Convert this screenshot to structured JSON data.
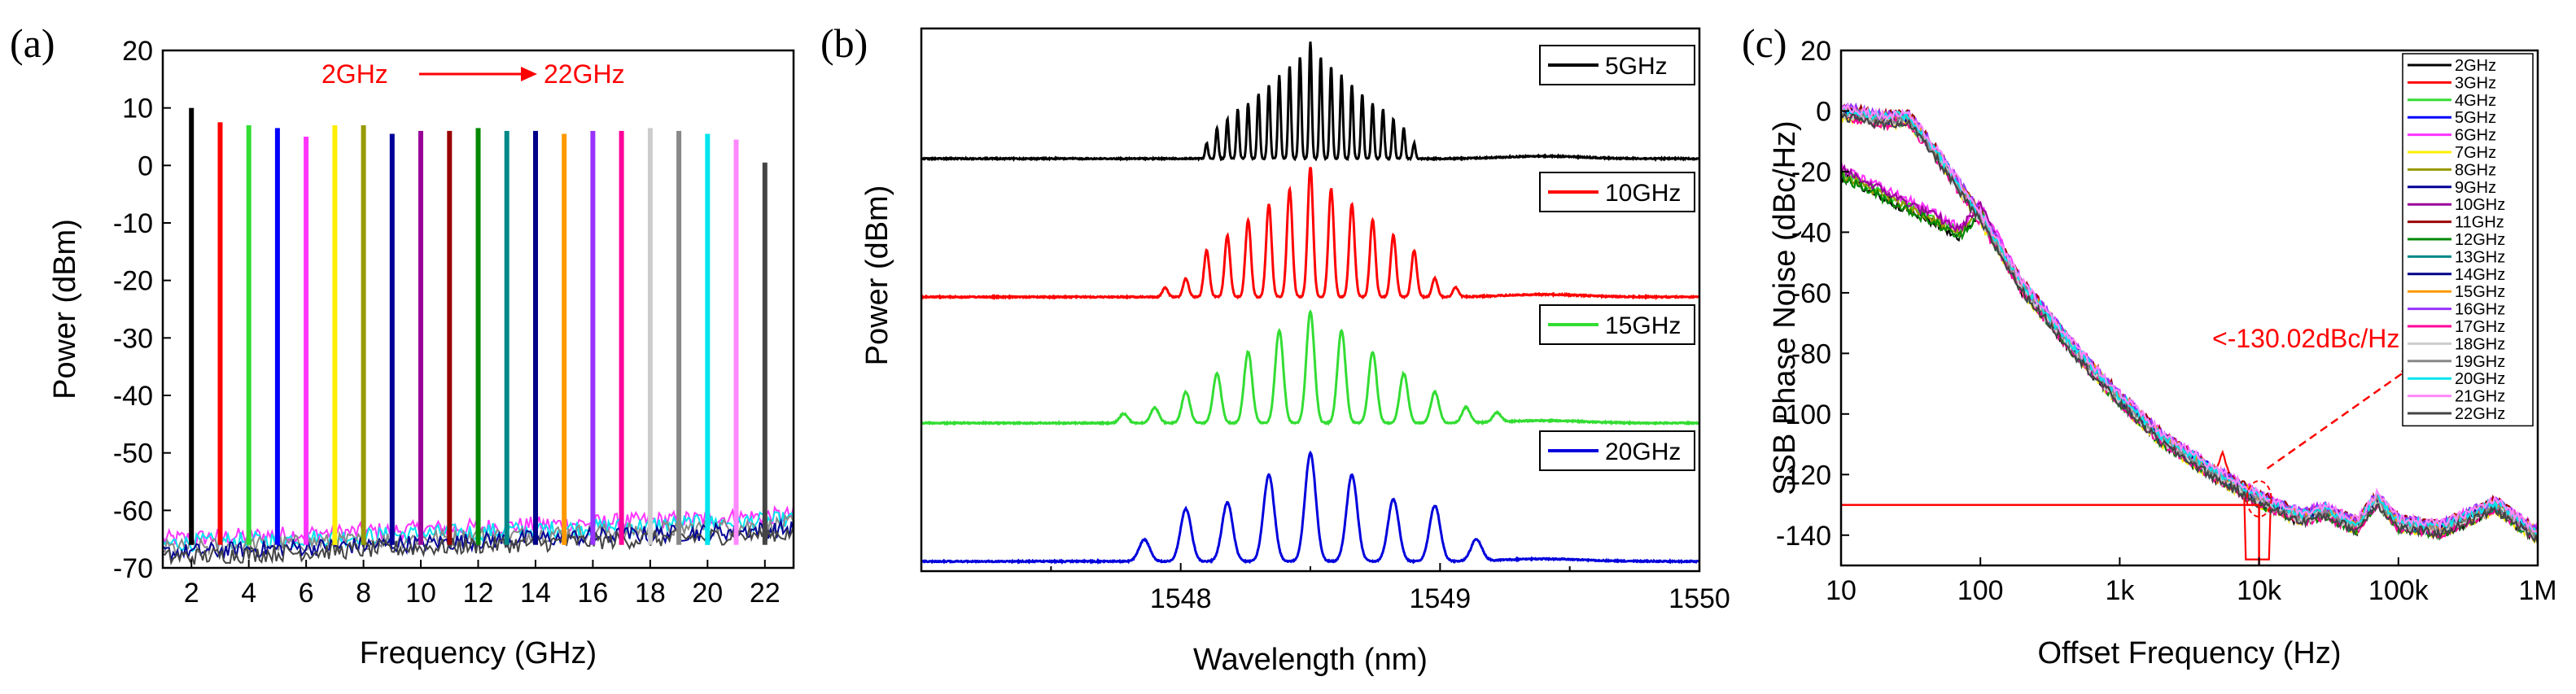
{
  "panels": [
    {
      "id": "a",
      "letter": "(a)"
    },
    {
      "id": "b",
      "letter": "(b)"
    },
    {
      "id": "c",
      "letter": "(c)"
    }
  ],
  "chart_data": [
    {
      "id": "a",
      "type": "line",
      "title": "",
      "xlabel": "Frequency (GHz)",
      "ylabel": "Power (dBm)",
      "xlim": [
        1,
        23
      ],
      "ylim": [
        -70,
        20
      ],
      "xticks": [
        2,
        4,
        6,
        8,
        10,
        12,
        14,
        16,
        18,
        20,
        22
      ],
      "yticks": [
        20,
        10,
        0,
        -10,
        -20,
        -30,
        -40,
        -50,
        -60,
        -70
      ],
      "annotation": {
        "from": "2GHz",
        "to": "22GHz",
        "color": "#ff0000"
      },
      "noise_floor": -64,
      "series": [
        {
          "name": "2GHz",
          "freq": 2,
          "peak": 10,
          "color": "#000000"
        },
        {
          "name": "3GHz",
          "freq": 3,
          "peak": 7.5,
          "color": "#ff0000"
        },
        {
          "name": "4GHz",
          "freq": 4,
          "peak": 7,
          "color": "#33dd33"
        },
        {
          "name": "5GHz",
          "freq": 5,
          "peak": 6.5,
          "color": "#0000ff"
        },
        {
          "name": "6GHz",
          "freq": 6,
          "peak": 5,
          "color": "#ff33ff"
        },
        {
          "name": "7GHz",
          "freq": 7,
          "peak": 7,
          "color": "#ffee00"
        },
        {
          "name": "8GHz",
          "freq": 8,
          "peak": 7,
          "color": "#999900"
        },
        {
          "name": "9GHz",
          "freq": 9,
          "peak": 5.5,
          "color": "#000099"
        },
        {
          "name": "10GHz",
          "freq": 10,
          "peak": 6,
          "color": "#990099"
        },
        {
          "name": "11GHz",
          "freq": 11,
          "peak": 6,
          "color": "#990000"
        },
        {
          "name": "12GHz",
          "freq": 12,
          "peak": 6.5,
          "color": "#008800"
        },
        {
          "name": "13GHz",
          "freq": 13,
          "peak": 6,
          "color": "#008888"
        },
        {
          "name": "14GHz",
          "freq": 14,
          "peak": 6,
          "color": "#000088"
        },
        {
          "name": "15GHz",
          "freq": 15,
          "peak": 5.5,
          "color": "#ff9900"
        },
        {
          "name": "16GHz",
          "freq": 16,
          "peak": 6,
          "color": "#9933ff"
        },
        {
          "name": "17GHz",
          "freq": 17,
          "peak": 6,
          "color": "#ff0099"
        },
        {
          "name": "18GHz",
          "freq": 18,
          "peak": 6.5,
          "color": "#cccccc"
        },
        {
          "name": "19GHz",
          "freq": 19,
          "peak": 6,
          "color": "#888888"
        },
        {
          "name": "20GHz",
          "freq": 20,
          "peak": 5.5,
          "color": "#00e5ee"
        },
        {
          "name": "21GHz",
          "freq": 21,
          "peak": 4.5,
          "color": "#ff88ff"
        },
        {
          "name": "22GHz",
          "freq": 22,
          "peak": 0.5,
          "color": "#444444"
        }
      ]
    },
    {
      "id": "b",
      "type": "line",
      "title": "",
      "xlabel": "Wavelength (nm)",
      "ylabel": "Power (dBm)",
      "xlim": [
        1547,
        1550
      ],
      "xticks": [
        1548,
        1549,
        1550
      ],
      "center": 1548.5,
      "series": [
        {
          "name": "5GHz",
          "spacing_nm": 0.04,
          "color": "#000000",
          "amps": [
            0.5,
            1.0,
            1.3,
            1.6,
            1.8,
            2.1,
            2.4,
            2.7,
            3.0,
            3.3,
            3.8,
            3.3,
            3.0,
            2.7,
            2.4,
            2.1,
            1.8,
            1.6,
            1.3,
            1.0,
            0.5
          ]
        },
        {
          "name": "10GHz",
          "spacing_nm": 0.08,
          "color": "#ff0000",
          "amps": [
            0.3,
            0.6,
            1.5,
            2.0,
            2.5,
            3.0,
            3.5,
            4.2,
            3.5,
            3.0,
            2.5,
            2.0,
            1.5,
            0.6,
            0.3
          ]
        },
        {
          "name": "15GHz",
          "spacing_nm": 0.12,
          "color": "#33dd33",
          "amps": [
            0.3,
            0.5,
            1.0,
            1.6,
            2.3,
            3.0,
            3.6,
            3.0,
            2.3,
            1.6,
            1.0,
            0.5,
            0.3
          ]
        },
        {
          "name": "20GHz",
          "spacing_nm": 0.16,
          "color": "#0000dd",
          "amps": [
            0.7,
            1.7,
            1.9,
            2.8,
            3.5,
            2.8,
            2.0,
            1.8,
            0.7
          ]
        }
      ]
    },
    {
      "id": "c",
      "type": "line",
      "title": "",
      "xlabel": "Offset Frequency (Hz)",
      "ylabel": "SSB Phase Noise (dBc/Hz)",
      "xscale": "log",
      "xlim": [
        10,
        1000000
      ],
      "ylim": [
        -150,
        20
      ],
      "xticks": [
        {
          "v": 10,
          "label": "10"
        },
        {
          "v": 100,
          "label": "100"
        },
        {
          "v": 1000,
          "label": "1k"
        },
        {
          "v": 10000,
          "label": "10k"
        },
        {
          "v": 100000,
          "label": "100k"
        },
        {
          "v": 1000000,
          "label": "1M"
        }
      ],
      "yticks": [
        20,
        0,
        -20,
        -40,
        -60,
        -80,
        -100,
        -120,
        -140
      ],
      "annotation": {
        "text": "<-130.02dBc/Hz",
        "level": -130.02,
        "color": "#ff0000"
      },
      "curve": {
        "x": [
          10,
          20,
          30,
          50,
          70,
          100,
          200,
          500,
          1000,
          2000,
          5000,
          10000,
          20000,
          30000,
          50000,
          70000,
          100000,
          200000,
          500000,
          700000,
          1000000
        ],
        "y": [
          0,
          -3,
          -2,
          -15,
          -25,
          -35,
          -58,
          -80,
          -95,
          -108,
          -120,
          -128,
          -134,
          -132,
          -137,
          -128,
          -136,
          -138,
          -130,
          -135,
          -140
        ]
      },
      "curve_low": {
        "x": [
          10,
          20,
          30,
          50,
          70,
          100,
          130,
          200,
          500
        ],
        "y": [
          -20,
          -27,
          -31,
          -36,
          -40,
          -32,
          -42,
          -58,
          -80
        ]
      },
      "series": [
        {
          "name": "2GHz",
          "color": "#000000"
        },
        {
          "name": "3GHz",
          "color": "#ff0000"
        },
        {
          "name": "4GHz",
          "color": "#33dd33"
        },
        {
          "name": "5GHz",
          "color": "#0000ff"
        },
        {
          "name": "6GHz",
          "color": "#ff33ff"
        },
        {
          "name": "7GHz",
          "color": "#ffee00"
        },
        {
          "name": "8GHz",
          "color": "#999900"
        },
        {
          "name": "9GHz",
          "color": "#000099"
        },
        {
          "name": "10GHz",
          "color": "#990099"
        },
        {
          "name": "11GHz",
          "color": "#990000"
        },
        {
          "name": "12GHz",
          "color": "#008800"
        },
        {
          "name": "13GHz",
          "color": "#008888"
        },
        {
          "name": "14GHz",
          "color": "#000088"
        },
        {
          "name": "15GHz",
          "color": "#ff9900"
        },
        {
          "name": "16GHz",
          "color": "#9933ff"
        },
        {
          "name": "17GHz",
          "color": "#ff0099"
        },
        {
          "name": "18GHz",
          "color": "#cccccc"
        },
        {
          "name": "19GHz",
          "color": "#888888"
        },
        {
          "name": "20GHz",
          "color": "#00e5ee"
        },
        {
          "name": "21GHz",
          "color": "#ff88ff"
        },
        {
          "name": "22GHz",
          "color": "#444444"
        }
      ]
    }
  ]
}
